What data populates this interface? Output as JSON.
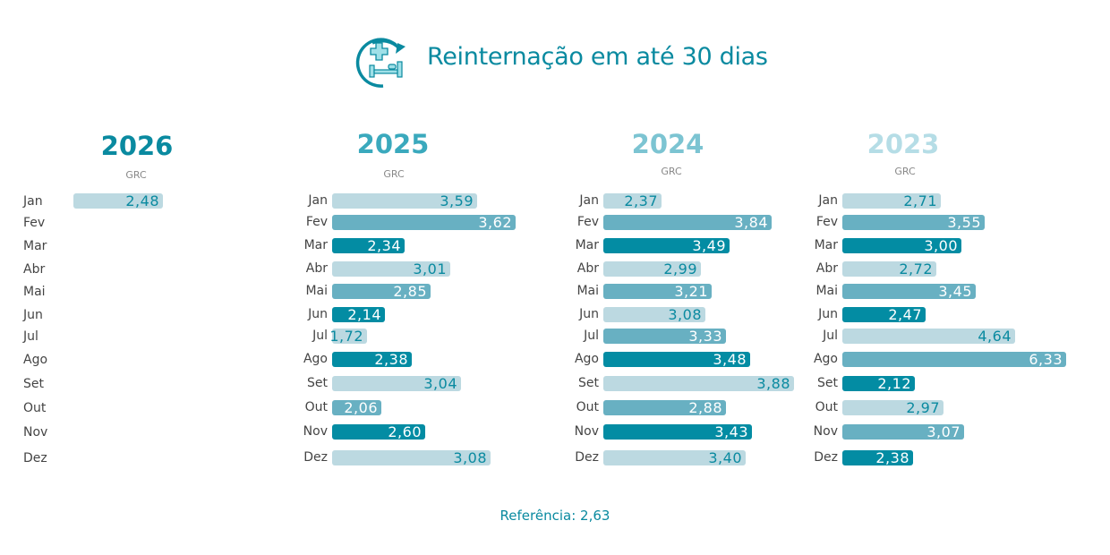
{
  "header": {
    "title": "Reinternação em até 30 dias",
    "icon": "hospital-bed-readmission-icon"
  },
  "colors": {
    "light": "#bcd9e1",
    "medium": "#68b0c2",
    "dark": "#038ca3",
    "light_text": "#0a8aa0",
    "bar_text": "#ffffff"
  },
  "months": [
    "Jan",
    "Fev",
    "Mar",
    "Abr",
    "Mai",
    "Jun",
    "Jul",
    "Ago",
    "Set",
    "Out",
    "Nov",
    "Dez"
  ],
  "chart_data": [
    {
      "type": "bar",
      "orientation": "horizontal",
      "title": "2026",
      "subtitle": "GRC",
      "title_color": "#0a8aa0",
      "categories": [
        "Jan",
        "Fev",
        "Mar",
        "Abr",
        "Mai",
        "Jun",
        "Jul",
        "Ago",
        "Set",
        "Out",
        "Nov",
        "Dez"
      ],
      "values": [
        2.48,
        null,
        null,
        null,
        null,
        null,
        null,
        null,
        null,
        null,
        null,
        null
      ],
      "labels": [
        "2,48",
        "",
        "",
        "",
        "",
        "",
        "",
        "",
        "",
        "",
        "",
        ""
      ],
      "tones": [
        "light"
      ]
    },
    {
      "type": "bar",
      "orientation": "horizontal",
      "title": "2025",
      "subtitle": "GRC",
      "title_color": "#3aa9bd",
      "categories": [
        "Jan",
        "Fev",
        "Mar",
        "Abr",
        "Mai",
        "Jun",
        "Jul",
        "Ago",
        "Set",
        "Out",
        "Nov",
        "Dez"
      ],
      "values": [
        3.59,
        3.62,
        2.34,
        3.01,
        2.85,
        2.14,
        1.72,
        2.38,
        3.04,
        2.06,
        2.6,
        3.08
      ],
      "labels": [
        "3,59",
        "3,62",
        "2,34",
        "3,01",
        "2,85",
        "2,14",
        "1,72",
        "2,38",
        "3,04",
        "2,06",
        "2,60",
        "3,08"
      ],
      "tones": [
        "light",
        "medium",
        "dark",
        "light",
        "medium",
        "dark",
        "light",
        "dark",
        "light",
        "medium",
        "dark",
        "light"
      ]
    },
    {
      "type": "bar",
      "orientation": "horizontal",
      "title": "2024",
      "subtitle": "GRC",
      "title_color": "#7cc4d2",
      "categories": [
        "Jan",
        "Fev",
        "Mar",
        "Abr",
        "Mai",
        "Jun",
        "Jul",
        "Ago",
        "Set",
        "Out",
        "Nov",
        "Dez"
      ],
      "values": [
        2.37,
        3.84,
        3.49,
        2.99,
        3.21,
        3.08,
        3.33,
        3.48,
        3.88,
        2.88,
        3.43,
        3.4
      ],
      "labels": [
        "2,37",
        "3,84",
        "3,49",
        "2,99",
        "3,21",
        "3,08",
        "3,33",
        "3,48",
        "3,88",
        "2,88",
        "3,43",
        "3,40"
      ],
      "tones": [
        "light",
        "medium",
        "dark",
        "light",
        "medium",
        "light",
        "medium",
        "dark",
        "light",
        "medium",
        "dark",
        "light"
      ]
    },
    {
      "type": "bar",
      "orientation": "horizontal",
      "title": "2023",
      "subtitle": "GRC",
      "title_color": "#b5dde6",
      "categories": [
        "Jan",
        "Fev",
        "Mar",
        "Abr",
        "Mai",
        "Jun",
        "Jul",
        "Ago",
        "Set",
        "Out",
        "Nov",
        "Dez"
      ],
      "values": [
        2.71,
        3.55,
        3.0,
        2.72,
        3.45,
        2.47,
        4.64,
        6.33,
        2.12,
        2.97,
        3.07,
        2.38
      ],
      "labels": [
        "2,71",
        "3,55",
        "3,00",
        "2,72",
        "3,45",
        "2,47",
        "4,64",
        "6,33",
        "2,12",
        "2,97",
        "3,07",
        "2,38"
      ],
      "tones": [
        "light",
        "medium",
        "dark",
        "light",
        "medium",
        "dark",
        "light",
        "medium",
        "dark",
        "light",
        "medium",
        "dark"
      ]
    }
  ],
  "footer": {
    "reference": "Referência: 2,63"
  }
}
